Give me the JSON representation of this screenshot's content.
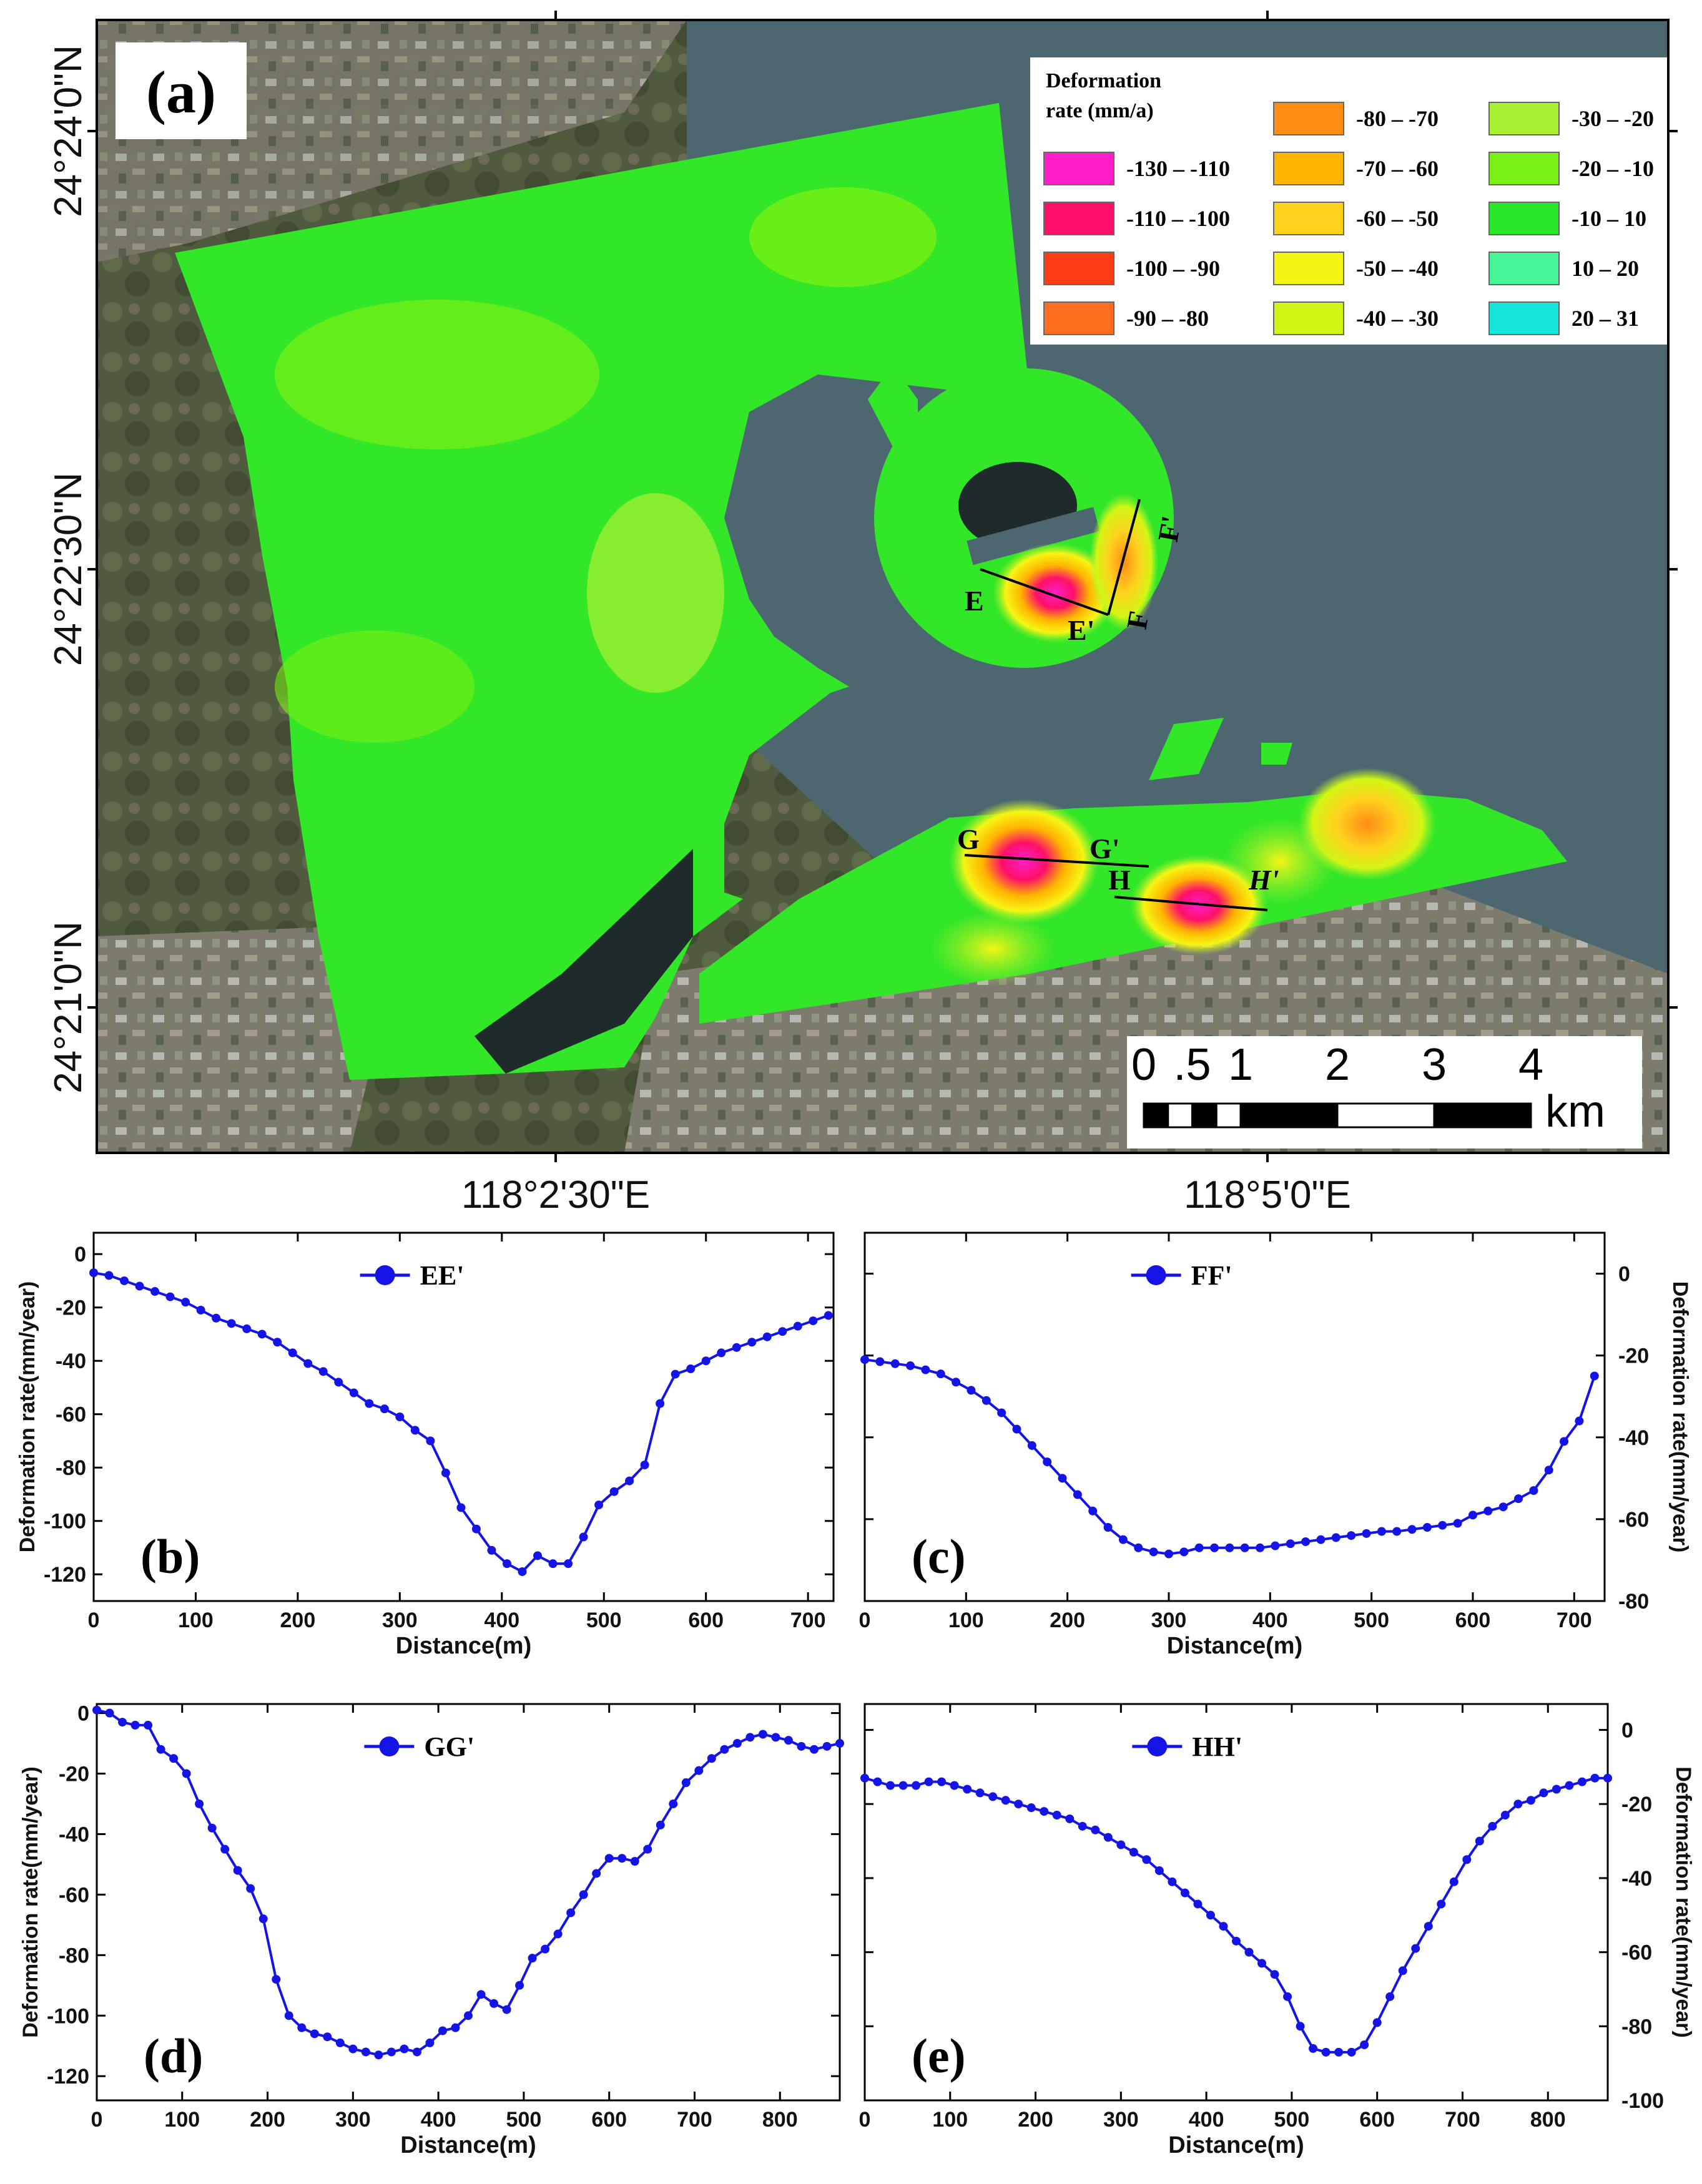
{
  "map": {
    "panel_label": "(a)",
    "lat_labels": [
      "24°24'0\"N",
      "24°22'30\"N",
      "24°21'0\"N"
    ],
    "lon_labels": [
      "118°2'30\"E",
      "118°5'0\"E"
    ],
    "legend": {
      "title_line1": "Deformation",
      "title_line2": "rate (mm/a)",
      "classes": [
        {
          "label": "-130 – -110",
          "color": "#ff1ec8"
        },
        {
          "label": "-110 – -100",
          "color": "#ff1068"
        },
        {
          "label": "-100 – -90",
          "color": "#ff3c14"
        },
        {
          "label": "-90 – -80",
          "color": "#ff6e1e"
        },
        {
          "label": "-80 – -70",
          "color": "#ff8c14"
        },
        {
          "label": "-70 – -60",
          "color": "#ffb400"
        },
        {
          "label": "-60 – -50",
          "color": "#ffd21e"
        },
        {
          "label": "-50 – -40",
          "color": "#f5f514"
        },
        {
          "label": "-40 – -30",
          "color": "#d2f514"
        },
        {
          "label": "-30 – -20",
          "color": "#aaf032"
        },
        {
          "label": "-20 – -10",
          "color": "#78f014"
        },
        {
          "label": "-10 – 10",
          "color": "#28e628"
        },
        {
          "label": "10 – 20",
          "color": "#46f596"
        },
        {
          "label": "20 – 31",
          "color": "#14e6dc"
        }
      ]
    },
    "profiles": [
      "E",
      "E'",
      "F",
      "F'",
      "G",
      "G'",
      "H",
      "H'"
    ],
    "scalebar": {
      "ticks": [
        "0",
        ".5",
        "1",
        "2",
        "3",
        "4"
      ],
      "unit": "km"
    },
    "colors": {
      "water": "#4d6770",
      "green": "#32e628",
      "line": "#000000"
    }
  },
  "chart_data": [
    {
      "panel": "(b)",
      "type": "line",
      "legend": "EE'",
      "xlabel": "Distance(m)",
      "ylabel": "Deformation rate(mm/year)",
      "yaxis_side": "left",
      "xlim": [
        0,
        725
      ],
      "ylim": [
        -130,
        8
      ],
      "xticks": [
        0,
        100,
        200,
        300,
        400,
        500,
        600,
        700
      ],
      "yticks": [
        0,
        -20,
        -40,
        -60,
        -80,
        -100,
        -120
      ],
      "x": [
        0,
        15,
        30,
        45,
        60,
        75,
        90,
        105,
        120,
        135,
        150,
        165,
        180,
        195,
        210,
        225,
        240,
        255,
        270,
        285,
        300,
        315,
        330,
        345,
        360,
        375,
        390,
        405,
        420,
        435,
        450,
        465,
        480,
        495,
        510,
        525,
        540,
        555,
        570,
        585,
        600,
        615,
        630,
        645,
        660,
        675,
        690,
        705,
        720
      ],
      "y": [
        -7,
        -8,
        -10,
        -12,
        -14,
        -16,
        -18,
        -21,
        -24,
        -26,
        -28,
        -30,
        -33,
        -37,
        -41,
        -44,
        -48,
        -52,
        -56,
        -58,
        -61,
        -66,
        -70,
        -82,
        -95,
        -103,
        -111,
        -116,
        -119,
        -113,
        -116,
        -116,
        -106,
        -94,
        -89,
        -85,
        -79,
        -56,
        -45,
        -43,
        -40,
        -37,
        -35,
        -33,
        -31,
        -29,
        -27,
        -25,
        -23
      ]
    },
    {
      "panel": "(c)",
      "type": "line",
      "legend": "FF'",
      "xlabel": "Distance(m)",
      "ylabel": "Deformation rate(mm/year)",
      "yaxis_side": "right",
      "xlim": [
        0,
        730
      ],
      "ylim": [
        -80,
        10
      ],
      "xticks": [
        0,
        100,
        200,
        300,
        400,
        500,
        600,
        700
      ],
      "yticks": [
        0,
        -20,
        -40,
        -60,
        -80
      ],
      "x": [
        0,
        15,
        30,
        45,
        60,
        75,
        90,
        105,
        120,
        135,
        150,
        165,
        180,
        195,
        210,
        225,
        240,
        255,
        270,
        285,
        300,
        315,
        330,
        345,
        360,
        375,
        390,
        405,
        420,
        435,
        450,
        465,
        480,
        495,
        510,
        525,
        540,
        555,
        570,
        585,
        600,
        615,
        630,
        645,
        660,
        675,
        690,
        705,
        720
      ],
      "y": [
        -21,
        -21.5,
        -22,
        -22.5,
        -23.5,
        -24.5,
        -26.5,
        -28.5,
        -31,
        -34,
        -38,
        -42,
        -46,
        -50,
        -54,
        -58,
        -62,
        -65,
        -67,
        -68,
        -68.5,
        -68,
        -67,
        -67,
        -67,
        -67,
        -67,
        -66.5,
        -66,
        -65.5,
        -65,
        -64.5,
        -64,
        -63.5,
        -63,
        -63,
        -62.5,
        -62,
        -61.5,
        -61,
        -59,
        -58,
        -57,
        -55,
        -53,
        -48,
        -41,
        -36,
        -25
      ]
    },
    {
      "panel": "(d)",
      "type": "line",
      "legend": "GG'",
      "xlabel": "Distance(m)",
      "ylabel": "Deformation rate(mm/year)",
      "yaxis_side": "left",
      "xlim": [
        0,
        870
      ],
      "ylim": [
        -128,
        3
      ],
      "xticks": [
        0,
        100,
        200,
        300,
        400,
        500,
        600,
        700,
        800
      ],
      "yticks": [
        0,
        -20,
        -40,
        -60,
        -80,
        -100,
        -120
      ],
      "x": [
        0,
        15,
        30,
        45,
        60,
        75,
        90,
        105,
        120,
        135,
        150,
        165,
        180,
        195,
        210,
        225,
        240,
        255,
        270,
        285,
        300,
        315,
        330,
        345,
        360,
        375,
        390,
        405,
        420,
        435,
        450,
        465,
        480,
        495,
        510,
        525,
        540,
        555,
        570,
        585,
        600,
        615,
        630,
        645,
        660,
        675,
        690,
        705,
        720,
        735,
        750,
        765,
        780,
        795,
        810,
        825,
        840,
        855,
        870
      ],
      "y": [
        1,
        0,
        -3,
        -4,
        -4,
        -12,
        -15,
        -20,
        -30,
        -38,
        -45,
        -52,
        -58,
        -68,
        -88,
        -100,
        -104,
        -106,
        -107,
        -109,
        -111,
        -112,
        -113,
        -112,
        -111,
        -112,
        -109,
        -105,
        -104,
        -100,
        -93,
        -96,
        -98,
        -90,
        -81,
        -78,
        -73,
        -66,
        -60,
        -53,
        -48,
        -48,
        -49,
        -45,
        -37,
        -30,
        -23,
        -19,
        -15,
        -12,
        -10,
        -8,
        -7,
        -8,
        -9,
        -11,
        -12,
        -11,
        -10
      ]
    },
    {
      "panel": "(e)",
      "type": "line",
      "legend": "HH'",
      "xlabel": "Distance(m)",
      "ylabel": "Deformation rate(mm/year)",
      "yaxis_side": "right",
      "xlim": [
        0,
        870
      ],
      "ylim": [
        -100,
        7
      ],
      "xticks": [
        0,
        100,
        200,
        300,
        400,
        500,
        600,
        700,
        800
      ],
      "yticks": [
        0,
        -20,
        -40,
        -60,
        -80,
        -100
      ],
      "x": [
        0,
        15,
        30,
        45,
        60,
        75,
        90,
        105,
        120,
        135,
        150,
        165,
        180,
        195,
        210,
        225,
        240,
        255,
        270,
        285,
        300,
        315,
        330,
        345,
        360,
        375,
        390,
        405,
        420,
        435,
        450,
        465,
        480,
        495,
        510,
        525,
        540,
        555,
        570,
        585,
        600,
        615,
        630,
        645,
        660,
        675,
        690,
        705,
        720,
        735,
        750,
        765,
        780,
        795,
        810,
        825,
        840,
        855,
        870
      ],
      "y": [
        -13,
        -14,
        -15,
        -15,
        -15,
        -14,
        -14,
        -15,
        -16,
        -17,
        -18,
        -19,
        -20,
        -21,
        -22,
        -23,
        -24,
        -26,
        -27,
        -29,
        -31,
        -33,
        -35,
        -38,
        -41,
        -44,
        -47,
        -50,
        -53,
        -57,
        -60,
        -63,
        -66,
        -72,
        -80,
        -86,
        -87,
        -87,
        -87,
        -85,
        -79,
        -72,
        -65,
        -59,
        -53,
        -47,
        -41,
        -35,
        -30,
        -26,
        -23,
        -20,
        -19,
        -17,
        -16,
        -15,
        -14,
        -13,
        -13
      ]
    }
  ]
}
